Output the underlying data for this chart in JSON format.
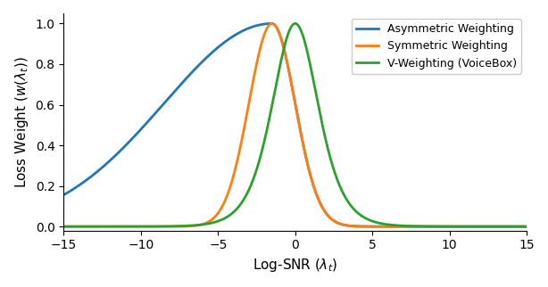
{
  "xlim": [
    -15,
    15
  ],
  "ylim": [
    -0.02,
    1.05
  ],
  "xlabel": "Log-SNR ($\\lambda_t$)",
  "ylabel": "Loss Weight ($w(\\lambda_t)$)",
  "xticks": [
    -15,
    -10,
    -5,
    0,
    5,
    10,
    15
  ],
  "yticks": [
    0.0,
    0.2,
    0.4,
    0.6,
    0.8,
    1.0
  ],
  "legend_labels": [
    "Asymmetric Weighting",
    "Symmetric Weighting",
    "V-Weighting (VoiceBox)"
  ],
  "colors": [
    "#1f77b4",
    "#ff7f0e",
    "#2ca02c"
  ],
  "line_width": 2.0,
  "figsize": [
    6.14,
    3.22
  ],
  "dpi": 100,
  "asym_mu": -1.0,
  "asym_sigma": 1.5,
  "asym_shift": -3.5,
  "sym_mu": -1.0,
  "sym_sigma": 1.5,
  "v_mu": 0.0,
  "v_sigma": 1.1
}
